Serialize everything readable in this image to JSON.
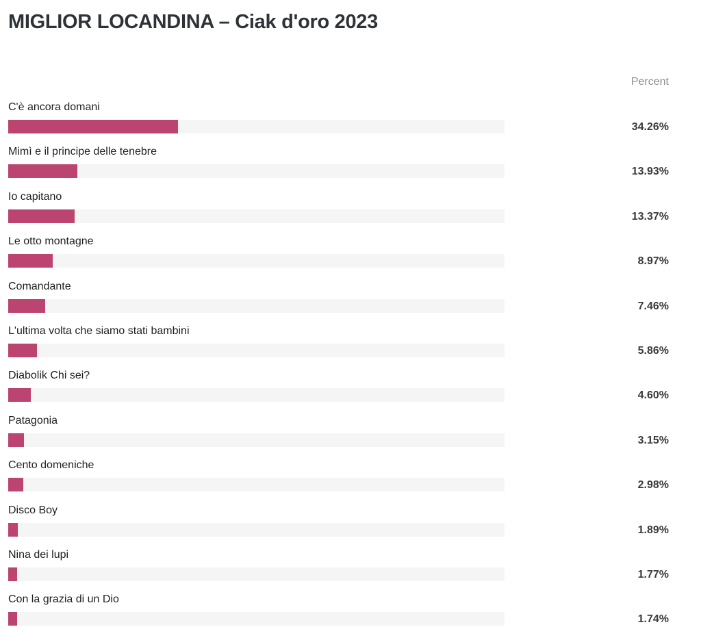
{
  "title": "MIGLIOR LOCANDINA – Ciak d'oro 2023",
  "column_header": "Percent",
  "colors": {
    "bar": "#bc4470",
    "track": "#f5f5f5"
  },
  "chart_data": {
    "type": "bar",
    "orientation": "horizontal",
    "title": "MIGLIOR LOCANDINA – Ciak d'oro 2023",
    "value_header": "Percent",
    "xlim": [
      0,
      100
    ],
    "grid": false,
    "categories": [
      "C'è ancora domani",
      "Mimì e il principe delle tenebre",
      "Io capitano",
      "Le otto montagne",
      "Comandante",
      "L'ultima volta che siamo stati bambini",
      "Diabolik Chi sei?",
      "Patagonia",
      "Cento domeniche",
      "Disco Boy",
      "Nina dei lupi",
      "Con la grazia di un Dio"
    ],
    "values": [
      34.26,
      13.93,
      13.37,
      8.97,
      7.46,
      5.86,
      4.6,
      3.15,
      2.98,
      1.89,
      1.77,
      1.74
    ],
    "value_labels": [
      "34.26%",
      "13.93%",
      "13.37%",
      "8.97%",
      "7.46%",
      "5.86%",
      "4.60%",
      "3.15%",
      "2.98%",
      "1.89%",
      "1.77%",
      "1.74%"
    ]
  }
}
